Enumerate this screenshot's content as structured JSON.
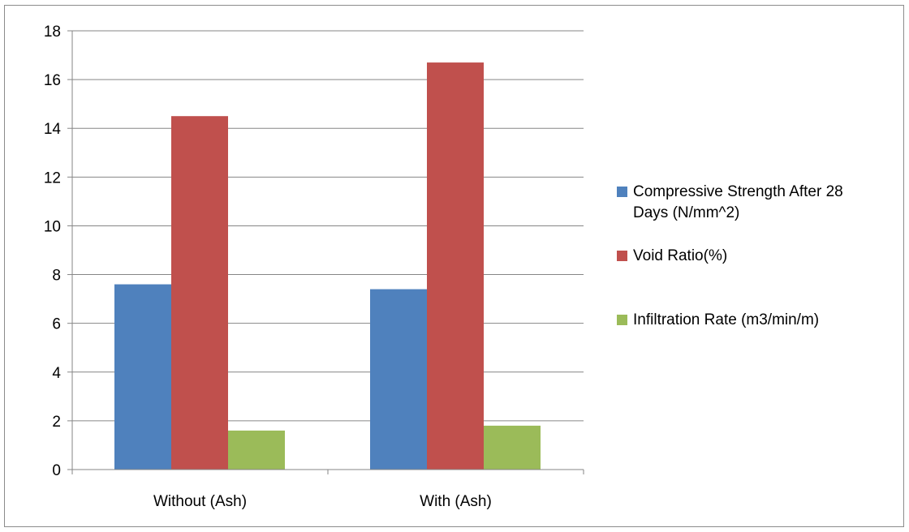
{
  "chart_data": {
    "type": "bar",
    "title": "",
    "xlabel": "",
    "ylabel": "",
    "categories": [
      "Without (Ash)",
      "With (Ash)"
    ],
    "series": [
      {
        "name": "Compressive Strength After 28 Days (N/mm^2)",
        "legend_lines": [
          "Compressive Strength After 28",
          "Days (N/mm^2)"
        ],
        "color": "#4f81bd",
        "values": [
          7.6,
          7.4
        ]
      },
      {
        "name": "Void Ratio(%)",
        "legend_lines": [
          "Void Ratio(%)"
        ],
        "color": "#c0504d",
        "values": [
          14.5,
          16.7
        ]
      },
      {
        "name": "Infiltration Rate (m3/min/m)",
        "legend_lines": [
          "Infiltration Rate (m3/min/m)"
        ],
        "color": "#9bbb59",
        "values": [
          1.6,
          1.8
        ]
      }
    ],
    "ylim": [
      0,
      18
    ],
    "yticks": [
      0,
      2,
      4,
      6,
      8,
      10,
      12,
      14,
      16,
      18
    ],
    "grid": true,
    "legend_position": "right"
  }
}
